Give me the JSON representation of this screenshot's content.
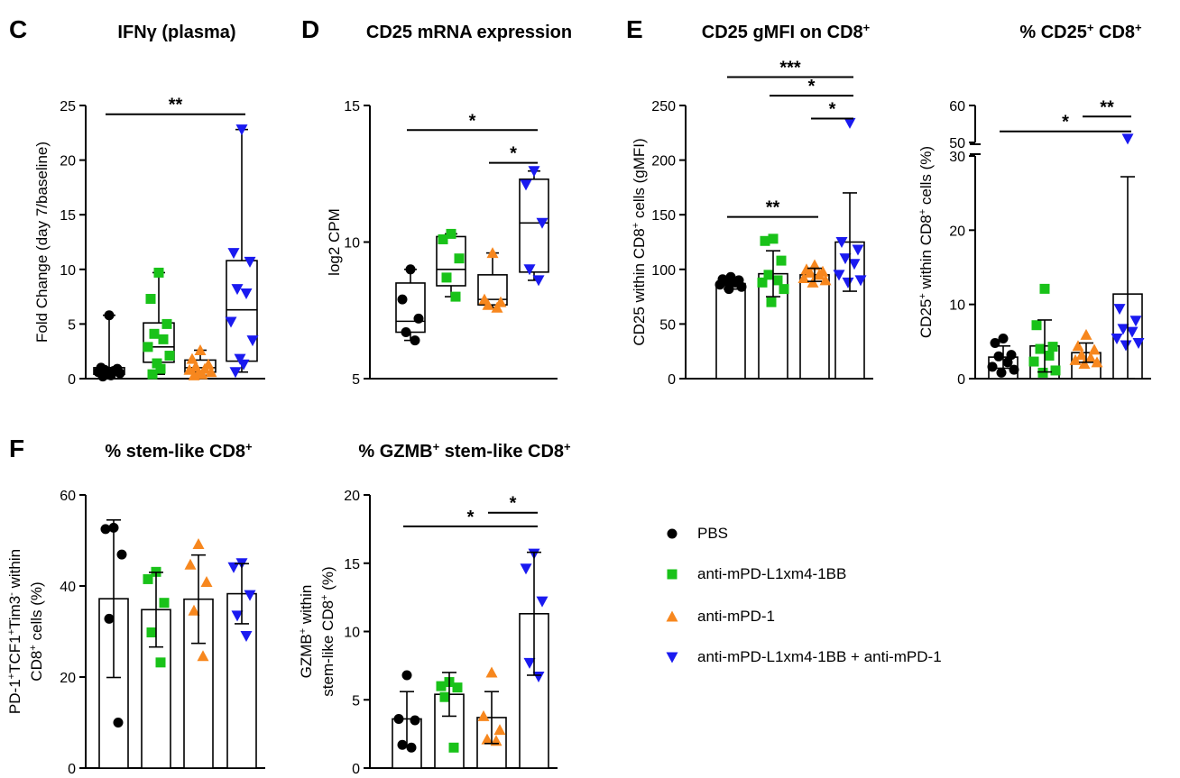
{
  "colors": {
    "PBS": "#000000",
    "anti-mPD-L1xm4-1BB": "#19c219",
    "anti-mPD-1": "#f7871e",
    "combo": "#1a1af0",
    "axis": "#000000"
  },
  "legend": [
    {
      "label": "PBS",
      "marker": "circle",
      "color": "#000000"
    },
    {
      "label": "anti-mPD-L1xm4-1BB",
      "marker": "square",
      "color": "#19c219"
    },
    {
      "label": "anti-mPD-1",
      "marker": "triangle",
      "color": "#f7871e"
    },
    {
      "label": "anti-mPD-L1xm4-1BB + anti-mPD-1",
      "marker": "triangle-down",
      "color": "#1a1af0"
    }
  ],
  "chart_data": [
    {
      "id": "C",
      "panel_label": "C",
      "type": "box",
      "title": "IFNγ (plasma)",
      "ylabel": "Fold Change (day 7/baseline)",
      "ylim": [
        0,
        25
      ],
      "yticks": [
        0,
        5,
        10,
        15,
        20,
        25
      ],
      "groups": [
        {
          "name": "PBS",
          "marker": "circle",
          "min": 0.2,
          "q1": 0.4,
          "median": 0.7,
          "q3": 1.0,
          "max": 5.8,
          "points": [
            5.8,
            1.0,
            0.9,
            0.8,
            0.7,
            0.6,
            0.5,
            0.4,
            0.3,
            0.2
          ]
        },
        {
          "name": "anti-mPD-L1xm4-1BB",
          "marker": "square",
          "min": 0.4,
          "q1": 1.5,
          "median": 2.9,
          "q3": 5.1,
          "max": 9.7,
          "points": [
            9.7,
            7.3,
            5.0,
            4.1,
            3.6,
            2.9,
            2.1,
            1.4,
            0.9,
            0.4
          ]
        },
        {
          "name": "anti-mPD-1",
          "marker": "triangle",
          "min": 0.3,
          "q1": 0.6,
          "median": 1.0,
          "q3": 1.7,
          "max": 2.6,
          "points": [
            2.6,
            1.8,
            1.3,
            1.1,
            0.9,
            0.8,
            0.6,
            0.5,
            0.4,
            0.3
          ]
        },
        {
          "name": "anti-mPD-L1xm4-1BB + anti-mPD-1",
          "marker": "triangle-down",
          "min": 0.6,
          "q1": 1.6,
          "median": 6.3,
          "q3": 10.8,
          "max": 22.8,
          "points": [
            22.8,
            11.5,
            10.7,
            8.2,
            7.8,
            5.2,
            3.5,
            1.8,
            1.3,
            0.6
          ]
        }
      ],
      "significance": [
        {
          "from": 0,
          "to": 3,
          "label": "**",
          "y": 24.2
        }
      ]
    },
    {
      "id": "D",
      "panel_label": "D",
      "type": "box",
      "title": "CD25 mRNA expression",
      "ylabel": "log2 CPM",
      "ylim": [
        5,
        15
      ],
      "yticks": [
        5,
        10,
        15
      ],
      "groups": [
        {
          "name": "PBS",
          "marker": "circle",
          "min": 6.4,
          "q1": 6.7,
          "median": 7.1,
          "q3": 8.5,
          "max": 9.0,
          "points": [
            9.0,
            7.9,
            7.2,
            6.7,
            6.4
          ]
        },
        {
          "name": "anti-mPD-L1xm4-1BB",
          "marker": "square",
          "min": 8.0,
          "q1": 8.4,
          "median": 9.0,
          "q3": 10.2,
          "max": 10.3,
          "points": [
            10.3,
            10.1,
            9.4,
            8.7,
            8.0
          ]
        },
        {
          "name": "anti-mPD-1",
          "marker": "triangle",
          "min": 7.6,
          "q1": 7.7,
          "median": 7.9,
          "q3": 8.8,
          "max": 9.6,
          "points": [
            9.6,
            7.9,
            7.8,
            7.7,
            7.6
          ]
        },
        {
          "name": "anti-mPD-L1xm4-1BB + anti-mPD-1",
          "marker": "triangle-down",
          "min": 8.6,
          "q1": 8.9,
          "median": 10.7,
          "q3": 12.3,
          "max": 12.6,
          "points": [
            12.6,
            12.1,
            10.7,
            9.0,
            8.6
          ]
        }
      ],
      "significance": [
        {
          "from": 0,
          "to": 3,
          "label": "*",
          "y": 14.1
        },
        {
          "from": 2,
          "to": 3,
          "label": "*",
          "y": 12.9
        }
      ]
    },
    {
      "id": "E1",
      "panel_label": "E",
      "type": "bar",
      "title": "CD25 gMFI on CD8+",
      "ylabel": "CD25 within CD8+ cells (gMFI)",
      "ylim": [
        0,
        250
      ],
      "yticks": [
        0,
        50,
        100,
        150,
        200,
        250
      ],
      "groups": [
        {
          "name": "PBS",
          "marker": "circle",
          "mean": 87,
          "sd": 5,
          "points": [
            93,
            91,
            90,
            89,
            88,
            86,
            84,
            82
          ]
        },
        {
          "name": "anti-mPD-L1xm4-1BB",
          "marker": "square",
          "mean": 96,
          "sd": 21,
          "points": [
            128,
            126,
            108,
            95,
            90,
            88,
            82,
            70
          ]
        },
        {
          "name": "anti-mPD-1",
          "marker": "triangle",
          "mean": 95,
          "sd": 6,
          "points": [
            104,
            100,
            98,
            97,
            95,
            92,
            90,
            88
          ]
        },
        {
          "name": "anti-mPD-L1xm4-1BB + anti-mPD-1",
          "marker": "triangle-down",
          "mean": 125,
          "sd": 45,
          "points": [
            234,
            125,
            118,
            110,
            105,
            95,
            90,
            88
          ]
        }
      ],
      "significance": [
        {
          "from": 0,
          "to": 3,
          "label": "***",
          "y": 276
        },
        {
          "from": 1,
          "to": 3,
          "label": "*",
          "y": 259
        },
        {
          "from": 2,
          "to": 3,
          "label": "*",
          "y": 238
        },
        {
          "from": 0,
          "to": 2,
          "label": "**",
          "y": 148
        }
      ]
    },
    {
      "id": "E2",
      "panel_label": "",
      "type": "bar",
      "title": "% CD25+ CD8+",
      "ylabel": "CD25+ within CD8+ cells (%)",
      "ylim": [
        0,
        60
      ],
      "yticks": [
        0,
        10,
        20,
        30,
        50,
        60
      ],
      "axis_break": [
        30,
        50
      ],
      "groups": [
        {
          "name": "PBS",
          "marker": "circle",
          "mean": 2.9,
          "sd": 1.5,
          "points": [
            5.4,
            4.8,
            3.2,
            3.0,
            2.2,
            1.6,
            1.2,
            0.8
          ]
        },
        {
          "name": "anti-mPD-L1xm4-1BB",
          "marker": "square",
          "mean": 4.4,
          "sd": 3.5,
          "points": [
            12.1,
            7.2,
            4.3,
            4.0,
            3.1,
            2.3,
            1.1,
            0.8
          ]
        },
        {
          "name": "anti-mPD-1",
          "marker": "triangle",
          "mean": 3.5,
          "sd": 1.3,
          "points": [
            5.9,
            4.4,
            3.9,
            3.2,
            2.8,
            2.5,
            2.2,
            2.0
          ]
        },
        {
          "name": "anti-mPD-L1xm4-1BB + anti-mPD-1",
          "marker": "triangle-down",
          "mean": 11.4,
          "sd": 15.8,
          "points": [
            51,
            9.4,
            7.8,
            6.7,
            6.3,
            5.4,
            4.8,
            4.5
          ]
        }
      ],
      "significance": [
        {
          "from": 0,
          "to": 3,
          "label": "*",
          "y": 53
        },
        {
          "from": 2,
          "to": 3,
          "label": "**",
          "y": 57
        }
      ]
    },
    {
      "id": "F1",
      "panel_label": "F",
      "type": "bar",
      "title": "% stem-like CD8+",
      "ylabel_line1": "PD-1+TCF1+Tim3- within",
      "ylabel_line2": "CD8+ cells (%)",
      "ylim": [
        0,
        60
      ],
      "yticks": [
        0,
        20,
        40,
        60
      ],
      "groups": [
        {
          "name": "PBS",
          "marker": "circle",
          "mean": 37.2,
          "sd": 17.3,
          "points": [
            52.8,
            52.5,
            46.9,
            32.8,
            10.0
          ]
        },
        {
          "name": "anti-mPD-L1xm4-1BB",
          "marker": "square",
          "mean": 34.8,
          "sd": 8.2,
          "points": [
            43.1,
            41.5,
            36.3,
            29.8,
            23.2
          ]
        },
        {
          "name": "anti-mPD-1",
          "marker": "triangle",
          "mean": 37.1,
          "sd": 9.7,
          "points": [
            49.2,
            44.7,
            40.9,
            34.6,
            24.6
          ]
        },
        {
          "name": "anti-mPD-L1xm4-1BB + anti-mPD-1",
          "marker": "triangle-down",
          "mean": 38.3,
          "sd": 6.6,
          "points": [
            45.0,
            44.1,
            38.0,
            33.5,
            29.0
          ]
        }
      ],
      "significance": []
    },
    {
      "id": "F2",
      "panel_label": "",
      "type": "bar",
      "title": "% GZMB+ stem-like CD8+",
      "ylabel_line1": "GZMB+ within",
      "ylabel_line2": "stem-like CD8+ (%)",
      "ylim": [
        0,
        20
      ],
      "yticks": [
        0,
        5,
        10,
        15,
        20
      ],
      "groups": [
        {
          "name": "PBS",
          "marker": "circle",
          "mean": 3.6,
          "sd": 2.0,
          "points": [
            6.8,
            3.6,
            3.5,
            1.7,
            1.5
          ]
        },
        {
          "name": "anti-mPD-L1xm4-1BB",
          "marker": "square",
          "mean": 5.4,
          "sd": 1.6,
          "points": [
            6.3,
            6.0,
            5.9,
            5.2,
            1.5
          ]
        },
        {
          "name": "anti-mPD-1",
          "marker": "triangle",
          "mean": 3.7,
          "sd": 1.9,
          "points": [
            7.0,
            3.8,
            2.8,
            2.1,
            2.0
          ]
        },
        {
          "name": "anti-mPD-L1xm4-1BB + anti-mPD-1",
          "marker": "triangle-down",
          "mean": 11.3,
          "sd": 4.5,
          "points": [
            15.7,
            14.6,
            12.2,
            7.7,
            6.7
          ]
        }
      ],
      "significance": [
        {
          "from": 0,
          "to": 3,
          "label": "*",
          "y": 17.7
        },
        {
          "from": 2,
          "to": 3,
          "label": "*",
          "y": 18.7
        }
      ]
    }
  ]
}
